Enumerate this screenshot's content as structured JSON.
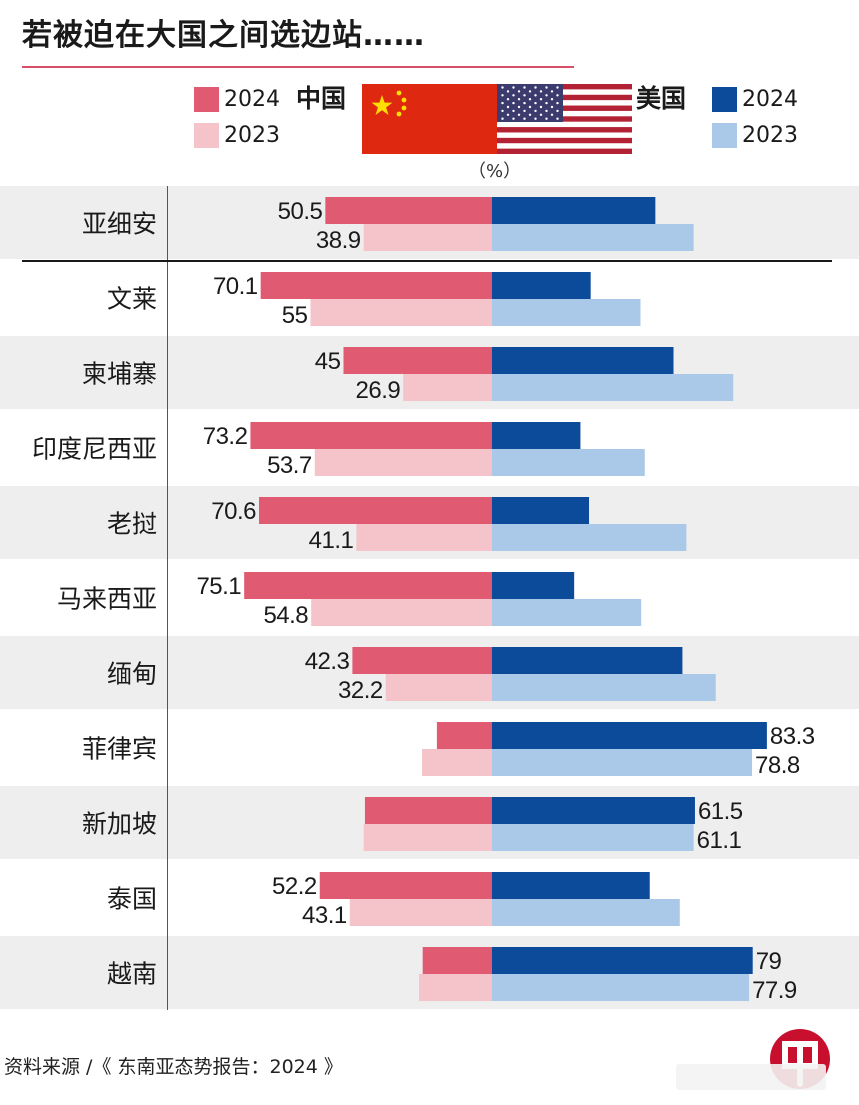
{
  "title": "若被迫在大国之间选边站……",
  "unit": "（%）",
  "source": "资料来源 /《 东南亚态势报告：2024 》",
  "legend": {
    "china": "中国",
    "usa": "美国",
    "year_2024": "2024",
    "year_2023": "2023"
  },
  "colors": {
    "china_2024": "#e05a72",
    "china_2023": "#f4c4ca",
    "usa_2024": "#0c4a9a",
    "usa_2023": "#aac8e8",
    "row_band": "#eeeeee",
    "title_rule": "#d94f66",
    "flag_red": "#de2910",
    "flag_yellow": "#ffde00",
    "us_blue": "#3c3b6e",
    "us_red": "#b22234"
  },
  "chart_data": {
    "type": "bar",
    "orientation": "horizontal-diverging",
    "title": "若被迫在大国之间选边站……",
    "unit": "%",
    "grid": false,
    "legend_position": "top",
    "categories": [
      "亚细安",
      "文莱",
      "柬埔寨",
      "印度尼西亚",
      "老挝",
      "马来西亚",
      "缅甸",
      "菲律宾",
      "新加坡",
      "泰国",
      "越南"
    ],
    "series": [
      {
        "name": "中国 2024",
        "values": [
          50.5,
          70.1,
          45,
          73.2,
          70.6,
          75.1,
          42.3,
          16.7,
          38.5,
          52.2,
          21
        ]
      },
      {
        "name": "中国 2023",
        "values": [
          38.9,
          55,
          26.9,
          53.7,
          41.1,
          54.8,
          32.2,
          21.2,
          38.9,
          43.1,
          22.1
        ]
      },
      {
        "name": "美国 2024",
        "values": [
          49.5,
          29.9,
          55,
          26.8,
          29.4,
          24.9,
          57.7,
          83.3,
          61.5,
          47.8,
          79
        ]
      },
      {
        "name": "美国 2023",
        "values": [
          61.1,
          45,
          73.1,
          46.3,
          58.9,
          45.2,
          67.8,
          78.8,
          61.1,
          56.9,
          77.9
        ]
      }
    ],
    "labels_shown": {
      "china_2024": [
        "50.5",
        "70.1",
        "45",
        "73.2",
        "70.6",
        "75.1",
        "42.3",
        "",
        "",
        "52.2",
        ""
      ],
      "china_2023": [
        "38.9",
        "55",
        "26.9",
        "53.7",
        "41.1",
        "54.8",
        "32.2",
        "",
        "",
        "43.1",
        ""
      ],
      "usa_2024": [
        "",
        "",
        "",
        "",
        "",
        "",
        "",
        "83.3",
        "61.5",
        "",
        "79"
      ],
      "usa_2023": [
        "",
        "",
        "",
        "",
        "",
        "",
        "",
        "78.8",
        "61.1",
        "",
        "77.9"
      ]
    }
  }
}
